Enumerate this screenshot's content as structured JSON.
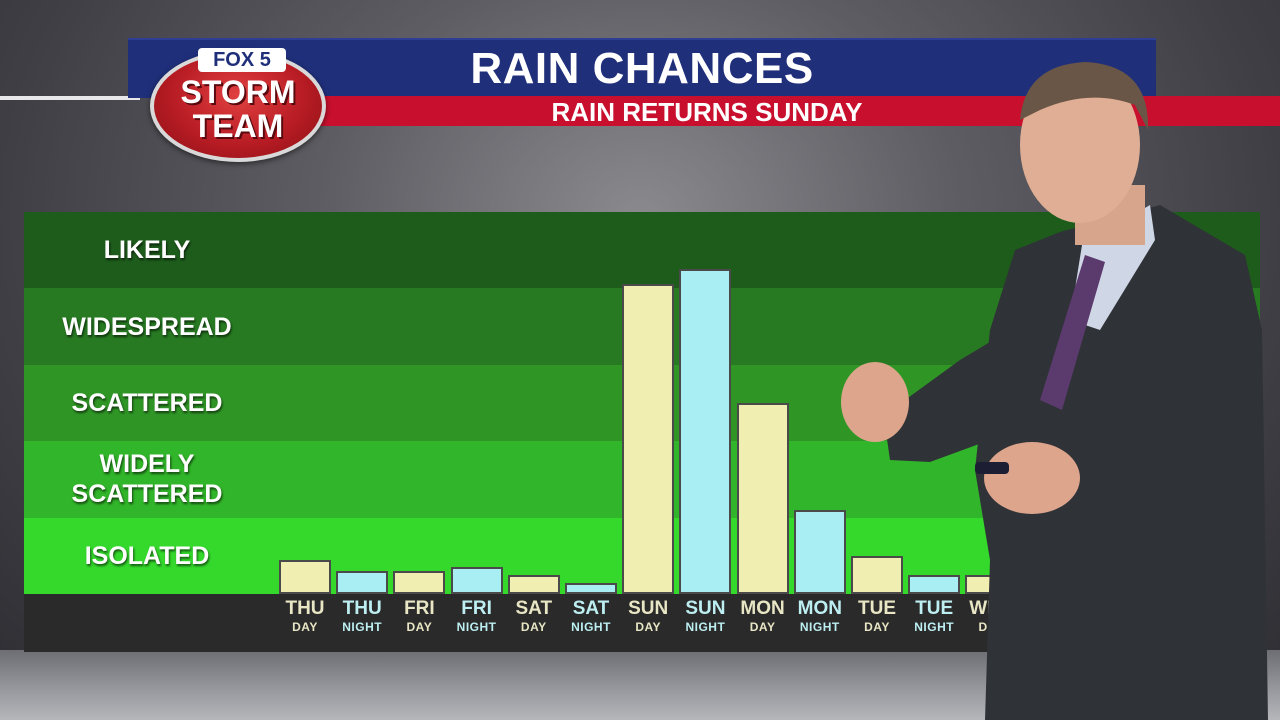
{
  "header": {
    "title": "RAIN CHANCES",
    "subtitle": "RAIN RETURNS SUNDAY"
  },
  "logo": {
    "top": "FOX 5",
    "line1": "STORM",
    "line2": "TEAM"
  },
  "colors": {
    "title_bar": "#1f2f7a",
    "subtitle_bar": "#c8102e",
    "day_bar": "#f0eeb0",
    "night_bar": "#a8eef2",
    "band_likely": "#1e5c1c",
    "band_widespread": "#277a22",
    "band_scattered": "#2f9626",
    "band_widely_scattered": "#31b52a",
    "band_isolated": "#34d92c"
  },
  "chart_data": {
    "type": "bar",
    "categories": [
      {
        "day": "THU",
        "part": "DAY"
      },
      {
        "day": "THU",
        "part": "NIGHT"
      },
      {
        "day": "FRI",
        "part": "DAY"
      },
      {
        "day": "FRI",
        "part": "NIGHT"
      },
      {
        "day": "SAT",
        "part": "DAY"
      },
      {
        "day": "SAT",
        "part": "NIGHT"
      },
      {
        "day": "SUN",
        "part": "DAY"
      },
      {
        "day": "SUN",
        "part": "NIGHT"
      },
      {
        "day": "MON",
        "part": "DAY"
      },
      {
        "day": "MON",
        "part": "NIGHT"
      },
      {
        "day": "TUE",
        "part": "DAY"
      },
      {
        "day": "TUE",
        "part": "NIGHT"
      },
      {
        "day": "WED",
        "part": "DAY"
      }
    ],
    "values": [
      0.45,
      0.3,
      0.3,
      0.35,
      0.25,
      0.15,
      4.06,
      4.26,
      2.5,
      1.1,
      0.5,
      0.25,
      0.25
    ],
    "ylim": [
      0,
      5
    ],
    "levels": [
      "ISOLATED",
      "WIDELY SCATTERED",
      "SCATTERED",
      "WIDESPREAD",
      "LIKELY"
    ],
    "level_lines": [
      [
        "ISOLATED"
      ],
      [
        "WIDELY",
        "SCATTERED"
      ],
      [
        "SCATTERED"
      ],
      [
        "WIDESPREAD"
      ],
      [
        "LIKELY"
      ]
    ]
  }
}
